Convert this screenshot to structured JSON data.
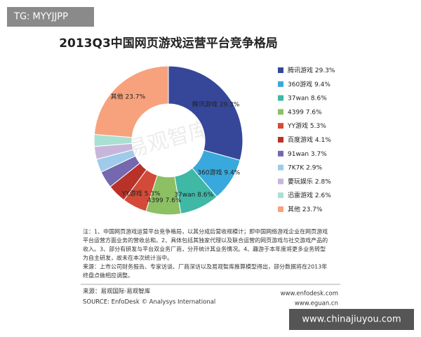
{
  "chart_data": {
    "type": "donut",
    "title": "2013Q3中国网页游戏运营平台竞争格局",
    "categories": [
      "腾讯游戏",
      "360游戏",
      "37wan",
      "4399",
      "YY游戏",
      "百度游戏",
      "91wan",
      "7K7K",
      "要玩娱乐",
      "迅雷游戏",
      "其他"
    ],
    "values": [
      29.3,
      9.4,
      8.6,
      7.6,
      5.3,
      4.1,
      3.7,
      2.9,
      2.8,
      2.6,
      23.7
    ],
    "value_labels": [
      "29.3%",
      "9.4%",
      "8.6%",
      "7.6%",
      "5.3%",
      "4.1%",
      "3.7%",
      "2.9%",
      "2.8%",
      "2.6%",
      "23.7%"
    ],
    "colors": [
      "#36479a",
      "#39a9dd",
      "#3fb8a6",
      "#8cc062",
      "#d34a38",
      "#b8322a",
      "#7568ae",
      "#9ecbea",
      "#c7b6dc",
      "#a9e0d3",
      "#f7a27c"
    ],
    "watermark": "易观智库",
    "notes": [
      "注：1、中国网页游戏运营平台竞争格局，以其分成后营收规模计；即中国网络游戏企业在网页游戏",
      "平台运营方面业务的营收总和。2、具体包括其独家代理以及联合运营的网页游戏与社交游戏产品的",
      "收入。3、部分有研发与平台双业务厂商，分开统计其业务情况。4、趣游于本年度将更多业务转型",
      "为自主研发，故未在本次统计当中。",
      "来源：上市公司财务报告、专家访谈、厂商深访以及易观智库推算模型得出，部分数据将在2013年",
      "终盘点做相应调整。"
    ],
    "source": [
      "来源：易观国际·易观智库",
      "SOURCE: EnfoDesk © Analysys International"
    ],
    "websites": [
      "www.enfodesk.com",
      "www.eguan.cn"
    ]
  },
  "overlays": [
    "TG: MYYJJPP",
    "www.chinajiuyou.com"
  ]
}
